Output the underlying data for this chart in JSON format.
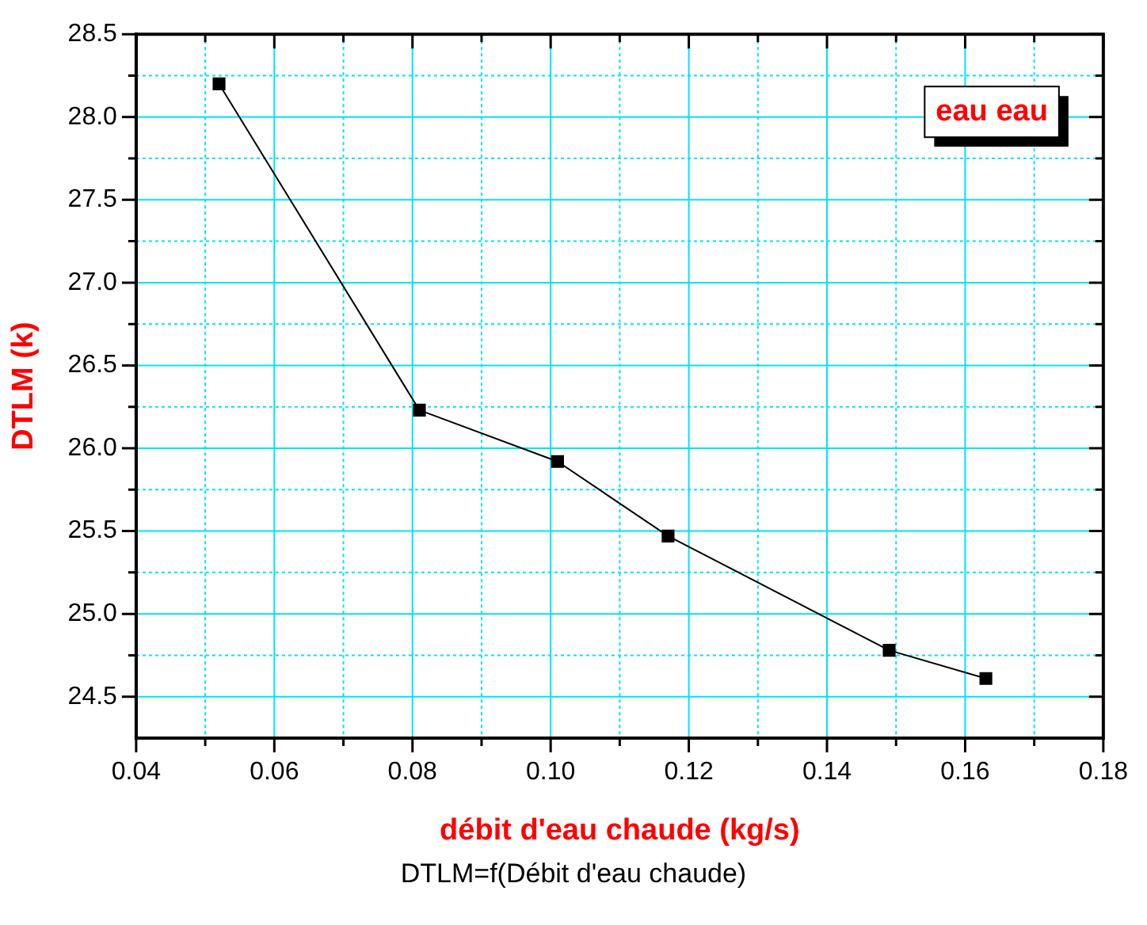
{
  "chart_data": {
    "type": "line",
    "xlabel": "débit d'eau chaude (kg/s)",
    "ylabel": "DTLM (k)",
    "annotations": [
      "DTLM=f(Débit d'eau chaude)"
    ],
    "x": [
      0.052,
      0.081,
      0.101,
      0.117,
      0.149,
      0.163
    ],
    "series": [
      {
        "name": "eau eau",
        "color": "#000000",
        "values": [
          28.2,
          26.23,
          25.92,
          25.47,
          24.78,
          24.61
        ]
      }
    ],
    "xlim": [
      0.04,
      0.18
    ],
    "xticks": [
      {
        "value": 0.04,
        "label": "0.04"
      },
      {
        "value": 0.05,
        "label": null
      },
      {
        "value": 0.06,
        "label": "0.06"
      },
      {
        "value": 0.07,
        "label": null
      },
      {
        "value": 0.08,
        "label": "0.08"
      },
      {
        "value": 0.09,
        "label": null
      },
      {
        "value": 0.1,
        "label": "0.10"
      },
      {
        "value": 0.11,
        "label": null
      },
      {
        "value": 0.12,
        "label": "0.12"
      },
      {
        "value": 0.13,
        "label": null
      },
      {
        "value": 0.14,
        "label": "0.14"
      },
      {
        "value": 0.15,
        "label": null
      },
      {
        "value": 0.16,
        "label": "0.16"
      },
      {
        "value": 0.17,
        "label": null
      },
      {
        "value": 0.18,
        "label": "0.18"
      }
    ],
    "ylim": [
      24.25,
      28.5
    ],
    "yticks": [
      {
        "value": 24.5,
        "label": "24.5"
      },
      {
        "value": 24.75,
        "label": null
      },
      {
        "value": 25,
        "label": "25.0"
      },
      {
        "value": 25.25,
        "label": null
      },
      {
        "value": 25.5,
        "label": "25.5"
      },
      {
        "value": 25.75,
        "label": null
      },
      {
        "value": 26,
        "label": "26.0"
      },
      {
        "value": 26.25,
        "label": null
      },
      {
        "value": 26.5,
        "label": "26.5"
      },
      {
        "value": 26.75,
        "label": null
      },
      {
        "value": 27,
        "label": "27.0"
      },
      {
        "value": 27.25,
        "label": null
      },
      {
        "value": 27.5,
        "label": "27.5"
      },
      {
        "value": 27.75,
        "label": null
      },
      {
        "value": 28,
        "label": "28.0"
      },
      {
        "value": 28.25,
        "label": null
      },
      {
        "value": 28.5,
        "label": "28.5"
      }
    ],
    "grid": true,
    "legend": "top right",
    "marker": "square",
    "line_style": "solid"
  }
}
